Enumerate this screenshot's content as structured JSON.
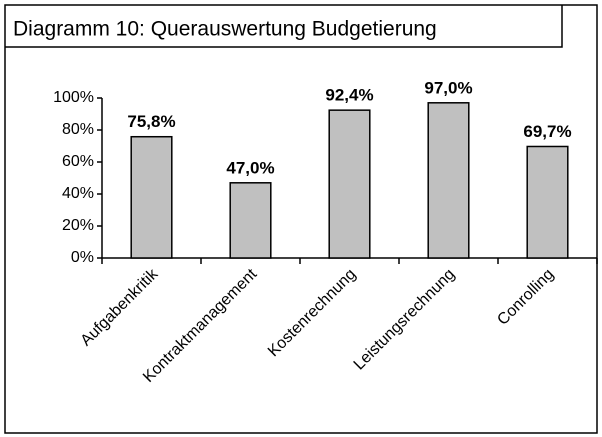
{
  "chart_data": {
    "type": "bar",
    "title": "Diagramm 10: Querauswertung Budgetierung",
    "categories": [
      "Aufgabenkritik",
      "Kontraktmanagement",
      "Kostenrechnung",
      "Leistungsrechnung",
      "Conrolling"
    ],
    "values": [
      75.8,
      47.0,
      92.4,
      97.0,
      69.7
    ],
    "value_labels": [
      "75,8%",
      "47,0%",
      "92,4%",
      "97,0%",
      "69,7%"
    ],
    "color": "#c0c0c0",
    "ylim": [
      0,
      100
    ],
    "yticks": [
      {
        "value": 0,
        "label": "0%"
      },
      {
        "value": 20,
        "label": "20%"
      },
      {
        "value": 40,
        "label": "40%"
      },
      {
        "value": 60,
        "label": "60%"
      },
      {
        "value": 80,
        "label": "80%"
      },
      {
        "value": 100,
        "label": "100%"
      }
    ],
    "grid": false
  }
}
